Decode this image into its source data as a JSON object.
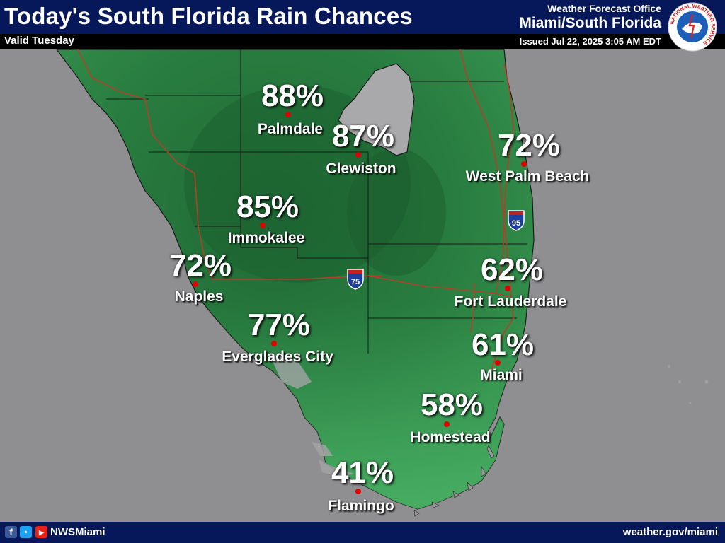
{
  "header": {
    "title": "Today's South Florida Rain Chances",
    "valid": "Valid Tuesday",
    "office_line": "Weather Forecast Office",
    "office_name": "Miami/South Florida",
    "issued": "Issued Jul 22, 2025 3:05 AM EDT",
    "logo_text": "NATIONAL WEATHER SERVICE"
  },
  "highways": [
    {
      "label": "95",
      "shield": "interstate-shield-icon"
    },
    {
      "label": "75",
      "shield": "interstate-shield-icon"
    }
  ],
  "cities": [
    {
      "name": "Palmdale",
      "chance": "88%"
    },
    {
      "name": "Clewiston",
      "chance": "87%"
    },
    {
      "name": "West Palm Beach",
      "chance": "72%"
    },
    {
      "name": "Immokalee",
      "chance": "85%"
    },
    {
      "name": "Naples",
      "chance": "72%"
    },
    {
      "name": "Fort Lauderdale",
      "chance": "62%"
    },
    {
      "name": "Everglades City",
      "chance": "77%"
    },
    {
      "name": "Miami",
      "chance": "61%"
    },
    {
      "name": "Homestead",
      "chance": "58%"
    },
    {
      "name": "Flamingo",
      "chance": "41%"
    }
  ],
  "colors": {
    "header_bg": "#07185a",
    "land_dark": "#23703a",
    "land_mid": "#2f8a47",
    "land_light": "#3fa35a",
    "water": "#8f8f92",
    "lake": "#a9a9ab",
    "roads": "#b3402a",
    "city_dot": "#e00000"
  },
  "footer": {
    "social_icons": [
      "facebook-icon",
      "twitter-icon",
      "youtube-icon"
    ],
    "handle": "NWSMiami",
    "website": "weather.gov/miami"
  }
}
